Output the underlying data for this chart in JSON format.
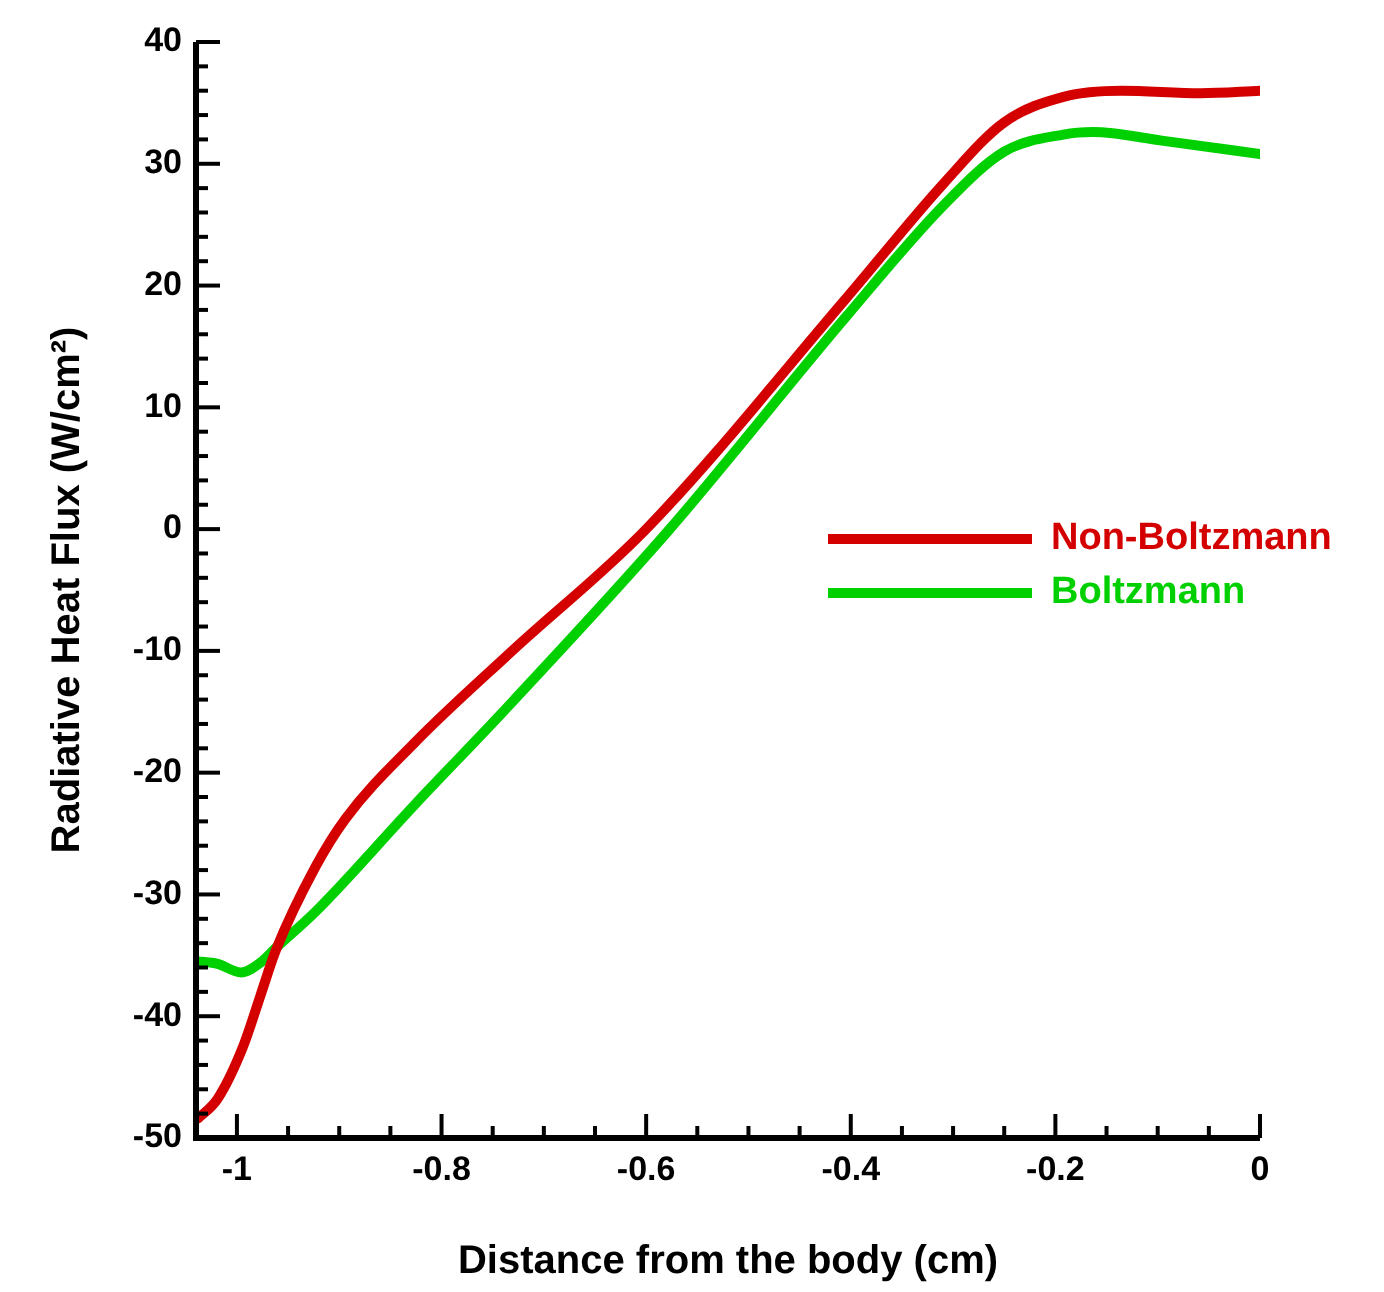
{
  "chart_data": {
    "type": "line",
    "xlabel": "Distance from the body (cm)",
    "ylabel": "Radiative Heat Flux (W/cm²)",
    "x": [
      -1.038,
      -1.019,
      -0.994,
      -0.977,
      -0.962,
      -0.923,
      -0.894,
      -0.827,
      -0.731,
      -0.6,
      -0.404,
      -0.308,
      -0.25,
      -0.192,
      -0.135,
      -0.058,
      0
    ],
    "series": [
      {
        "name": "Non-Boltzmann",
        "color": "#d40000",
        "values": [
          -48.4,
          -46.8,
          -42.5,
          -38.3,
          -34.6,
          -27.7,
          -23.8,
          -17.6,
          -10,
          0,
          19,
          28.5,
          33.4,
          35.5,
          36,
          35.8,
          36
        ]
      },
      {
        "name": "Boltzmann",
        "color": "#00d000",
        "x": [
          -1.038,
          -1.019,
          -0.996,
          -0.977,
          -0.962,
          -0.923,
          -0.827,
          -0.731,
          -0.577,
          -0.404,
          -0.308,
          -0.25,
          -0.192,
          -0.163,
          -0.096,
          0
        ],
        "values": [
          -35.5,
          -35.7,
          -36.4,
          -35.6,
          -34.4,
          -31.4,
          -22.7,
          -14.2,
          0,
          17.5,
          26.7,
          31,
          32.4,
          32.6,
          31.9,
          30.8
        ]
      }
    ],
    "xlim": [
      -1.04,
      0
    ],
    "xticks": [
      {
        "value": -1,
        "label": "-1"
      },
      {
        "value": -0.95,
        "label": null
      },
      {
        "value": -0.9,
        "label": null
      },
      {
        "value": -0.85,
        "label": null
      },
      {
        "value": -0.8,
        "label": "-0.8"
      },
      {
        "value": -0.75,
        "label": null
      },
      {
        "value": -0.7,
        "label": null
      },
      {
        "value": -0.65,
        "label": null
      },
      {
        "value": -0.6,
        "label": "-0.6"
      },
      {
        "value": -0.55,
        "label": null
      },
      {
        "value": -0.5,
        "label": null
      },
      {
        "value": -0.45,
        "label": null
      },
      {
        "value": -0.4,
        "label": "-0.4"
      },
      {
        "value": -0.35,
        "label": null
      },
      {
        "value": -0.3,
        "label": null
      },
      {
        "value": -0.25,
        "label": null
      },
      {
        "value": -0.2,
        "label": "-0.2"
      },
      {
        "value": -0.15,
        "label": null
      },
      {
        "value": -0.1,
        "label": null
      },
      {
        "value": -0.05,
        "label": null
      },
      {
        "value": 0,
        "label": "0"
      }
    ],
    "ylim": [
      -50,
      40
    ],
    "yticks": [
      -50,
      {
        "value": -48,
        "label": null
      },
      {
        "value": -46,
        "label": null
      },
      {
        "value": -44,
        "label": null
      },
      {
        "value": -42,
        "label": null
      },
      -40,
      {
        "value": -38,
        "label": null
      },
      {
        "value": -36,
        "label": null
      },
      {
        "value": -34,
        "label": null
      },
      {
        "value": -32,
        "label": null
      },
      -30,
      {
        "value": -28,
        "label": null
      },
      {
        "value": -26,
        "label": null
      },
      {
        "value": -24,
        "label": null
      },
      {
        "value": -22,
        "label": null
      },
      -20,
      {
        "value": -18,
        "label": null
      },
      {
        "value": -16,
        "label": null
      },
      {
        "value": -14,
        "label": null
      },
      {
        "value": -12,
        "label": null
      },
      -10,
      {
        "value": -8,
        "label": null
      },
      {
        "value": -6,
        "label": null
      },
      {
        "value": -4,
        "label": null
      },
      {
        "value": -2,
        "label": null
      },
      0,
      {
        "value": 2,
        "label": null
      },
      {
        "value": 4,
        "label": null
      },
      {
        "value": 6,
        "label": null
      },
      {
        "value": 8,
        "label": null
      },
      10,
      {
        "value": 12,
        "label": null
      },
      {
        "value": 14,
        "label": null
      },
      {
        "value": 16,
        "label": null
      },
      {
        "value": 18,
        "label": null
      },
      20,
      {
        "value": 22,
        "label": null
      },
      {
        "value": 24,
        "label": null
      },
      {
        "value": 26,
        "label": null
      },
      {
        "value": 28,
        "label": null
      },
      30,
      {
        "value": 32,
        "label": null
      },
      {
        "value": 34,
        "label": null
      },
      {
        "value": 36,
        "label": null
      },
      {
        "value": 38,
        "label": null
      },
      40
    ],
    "grid": false,
    "legend": "right",
    "marker": "none",
    "line_style": "solid"
  }
}
